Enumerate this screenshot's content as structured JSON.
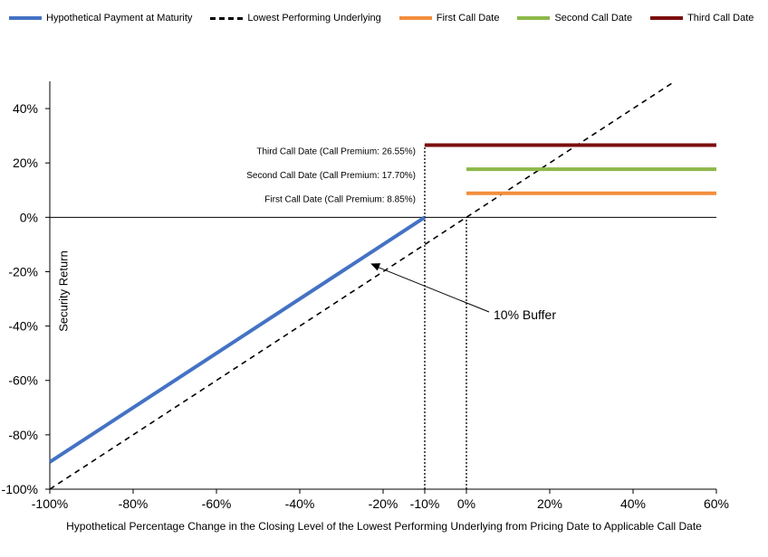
{
  "chart_data": {
    "type": "line",
    "legend": {
      "placement": "top",
      "entries": [
        {
          "name": "Hypothetical Payment at Maturity",
          "color": "#4472C4",
          "style": "solid"
        },
        {
          "name": "Lowest Performing Underlying",
          "color": "#000000",
          "style": "dashed"
        },
        {
          "name": "First Call Date",
          "color": "#F28E3C",
          "style": "solid"
        },
        {
          "name": "Second Call Date",
          "color": "#8DB84A",
          "style": "solid"
        },
        {
          "name": "Third Call Date",
          "color": "#7B0D0D",
          "style": "solid"
        }
      ]
    },
    "xlabel": "Hypothetical Percentage Change in the Closing Level of the Lowest Performing Underlying from Pricing Date to Applicable Call Date",
    "ylabel": "Security Return",
    "xlim": [
      -100,
      60
    ],
    "ylim": [
      -100,
      50
    ],
    "xticks": [
      -100,
      -80,
      -60,
      -40,
      -20,
      -10,
      0,
      20,
      40,
      60
    ],
    "xtick_labels": [
      "-100%",
      "-80%",
      "-60%",
      "-40%",
      "-20%",
      "-10%",
      "0%",
      "20%",
      "40%",
      "60%"
    ],
    "yticks": [
      -100,
      -80,
      -60,
      -40,
      -20,
      0,
      20,
      40
    ],
    "ytick_labels": [
      "-100%",
      "-80%",
      "-60%",
      "-40%",
      "-20%",
      "0%",
      "20%",
      "40%"
    ],
    "grid": false,
    "series": [
      {
        "name": "Hypothetical Payment at Maturity",
        "x": [
          -100,
          -10
        ],
        "y": [
          -90,
          0
        ]
      },
      {
        "name": "Lowest Performing Underlying",
        "x": [
          -100,
          50
        ],
        "y": [
          -100,
          50
        ]
      },
      {
        "name": "First Call Date",
        "x": [
          0,
          60
        ],
        "y": [
          8.85,
          8.85
        ]
      },
      {
        "name": "Second Call Date",
        "x": [
          0,
          60
        ],
        "y": [
          17.7,
          17.7
        ]
      },
      {
        "name": "Third Call Date",
        "x": [
          -10,
          60
        ],
        "y": [
          26.55,
          26.55
        ]
      }
    ],
    "reference_lines": [
      {
        "x": -10,
        "y_from": -100,
        "y_to": 26.55,
        "style": "dotted"
      },
      {
        "x": 0,
        "y_from": -100,
        "y_to": 0,
        "style": "dotted"
      }
    ],
    "annotations": [
      {
        "text": "Third Call Date (Call Premium: 26.55%)",
        "x": -10,
        "y": 26.55
      },
      {
        "text": "Second Call Date (Call Premium: 17.70%)",
        "x": -10,
        "y": 17.7
      },
      {
        "text": "First Call Date (Call Premium: 8.85%)",
        "x": -10,
        "y": 8.85
      }
    ],
    "callout": {
      "text": "10% Buffer",
      "arrow_to": {
        "x": -23,
        "y": -17
      }
    }
  }
}
